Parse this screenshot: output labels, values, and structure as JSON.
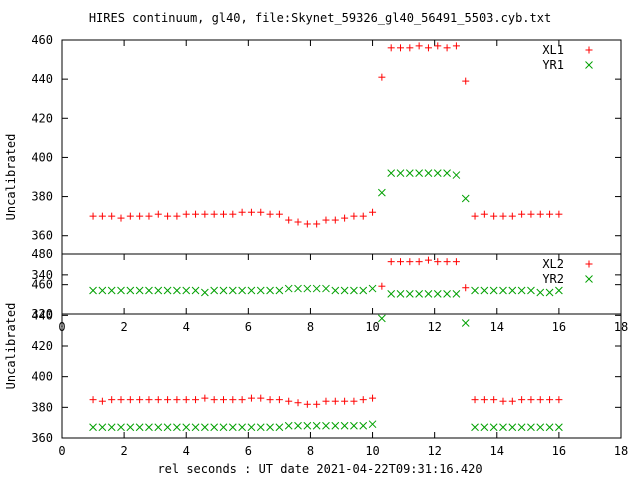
{
  "title": "HIRES continuum, gl40, file:Skynet_59326_gl40_56491_5503.cyb.txt",
  "x_axis_label": "rel seconds : UT date 2021-04-22T09:31:16.420",
  "colors": {
    "plus_series": "#ff0000",
    "x_series": "#00a000",
    "frame": "#000000"
  },
  "chart_data": [
    {
      "type": "scatter",
      "ylabel": "Uncalibrated",
      "xlim": [
        0,
        18
      ],
      "ylim": [
        320,
        460
      ],
      "xticks": [
        0,
        2,
        4,
        6,
        8,
        10,
        12,
        14,
        16,
        18
      ],
      "yticks": [
        320,
        340,
        360,
        380,
        400,
        420,
        440,
        460
      ],
      "legend_position": "top-right",
      "x": [
        1.0,
        1.3,
        1.6,
        1.9,
        2.2,
        2.5,
        2.8,
        3.1,
        3.4,
        3.7,
        4.0,
        4.3,
        4.6,
        4.9,
        5.2,
        5.5,
        5.8,
        6.1,
        6.4,
        6.7,
        7.0,
        7.3,
        7.6,
        7.9,
        8.2,
        8.5,
        8.8,
        9.1,
        9.4,
        9.7,
        10.0,
        10.3,
        10.6,
        10.9,
        11.2,
        11.5,
        11.8,
        12.1,
        12.4,
        12.7,
        13.0,
        13.3,
        13.6,
        13.9,
        14.2,
        14.5,
        14.8,
        15.1,
        15.4,
        15.7,
        16.0
      ],
      "series": [
        {
          "name": "XL1",
          "marker": "plus",
          "values": [
            370,
            370,
            370,
            369,
            370,
            370,
            370,
            371,
            370,
            370,
            371,
            371,
            371,
            371,
            371,
            371,
            372,
            372,
            372,
            371,
            371,
            368,
            367,
            366,
            366,
            368,
            368,
            369,
            370,
            370,
            372,
            441,
            456,
            456,
            456,
            457,
            456,
            457,
            456,
            457,
            439,
            370,
            371,
            370,
            370,
            370,
            371,
            371,
            371,
            371,
            371
          ]
        },
        {
          "name": "YR1",
          "marker": "x",
          "values": [
            332,
            332,
            332,
            332,
            332,
            332,
            332,
            332,
            332,
            332,
            332,
            332,
            331,
            332,
            332,
            332,
            332,
            332,
            332,
            332,
            332,
            333,
            333,
            333,
            333,
            333,
            332,
            332,
            332,
            332,
            333,
            382,
            392,
            392,
            392,
            392,
            392,
            392,
            392,
            391,
            379,
            332,
            332,
            332,
            332,
            332,
            332,
            332,
            331,
            331,
            332
          ]
        }
      ]
    },
    {
      "type": "scatter",
      "ylabel": "Uncalibrated",
      "xlim": [
        0,
        18
      ],
      "ylim": [
        360,
        480
      ],
      "xticks": [
        0,
        2,
        4,
        6,
        8,
        10,
        12,
        14,
        16,
        18
      ],
      "yticks": [
        360,
        380,
        400,
        420,
        440,
        460,
        480
      ],
      "legend_position": "top-right",
      "x": [
        1.0,
        1.3,
        1.6,
        1.9,
        2.2,
        2.5,
        2.8,
        3.1,
        3.4,
        3.7,
        4.0,
        4.3,
        4.6,
        4.9,
        5.2,
        5.5,
        5.8,
        6.1,
        6.4,
        6.7,
        7.0,
        7.3,
        7.6,
        7.9,
        8.2,
        8.5,
        8.8,
        9.1,
        9.4,
        9.7,
        10.0,
        10.3,
        10.6,
        10.9,
        11.2,
        11.5,
        11.8,
        12.1,
        12.4,
        12.7,
        13.0,
        13.3,
        13.6,
        13.9,
        14.2,
        14.5,
        14.8,
        15.1,
        15.4,
        15.7,
        16.0
      ],
      "series": [
        {
          "name": "XL2",
          "marker": "plus",
          "values": [
            385,
            384,
            385,
            385,
            385,
            385,
            385,
            385,
            385,
            385,
            385,
            385,
            386,
            385,
            385,
            385,
            385,
            386,
            386,
            385,
            385,
            384,
            383,
            382,
            382,
            384,
            384,
            384,
            384,
            385,
            386,
            459,
            475,
            475,
            475,
            475,
            476,
            475,
            475,
            475,
            458,
            385,
            385,
            385,
            384,
            384,
            385,
            385,
            385,
            385,
            385
          ]
        },
        {
          "name": "YR2",
          "marker": "x",
          "values": [
            367,
            367,
            367,
            367,
            367,
            367,
            367,
            367,
            367,
            367,
            367,
            367,
            367,
            367,
            367,
            367,
            367,
            367,
            367,
            367,
            367,
            368,
            368,
            368,
            368,
            368,
            368,
            368,
            368,
            368,
            369,
            438,
            454,
            454,
            454,
            454,
            454,
            454,
            454,
            454,
            435,
            367,
            367,
            367,
            367,
            367,
            367,
            367,
            367,
            367,
            367
          ]
        }
      ]
    }
  ]
}
